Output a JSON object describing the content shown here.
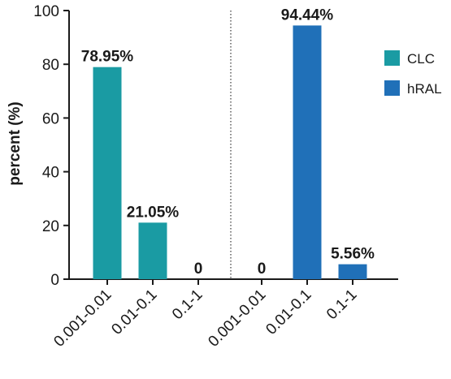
{
  "chart_data": {
    "type": "bar",
    "ylabel": "percent (%)",
    "ylim": [
      0,
      100
    ],
    "yticks": [
      0,
      20,
      40,
      60,
      80,
      100
    ],
    "groups": [
      {
        "series": "CLC",
        "color": "#1a9ba3",
        "categories": [
          "0.001-0.01",
          "0.01-0.1",
          "0.1-1"
        ],
        "values": [
          78.95,
          21.05,
          0
        ],
        "labels": [
          "78.95%",
          "21.05%",
          "0"
        ]
      },
      {
        "series": "hRAL",
        "color": "#2070b8",
        "categories": [
          "0.001-0.01",
          "0.01-0.1",
          "0.1-1"
        ],
        "values": [
          0,
          94.44,
          5.56
        ],
        "labels": [
          "0",
          "94.44%",
          "5.56%"
        ]
      }
    ],
    "legend": {
      "position": "right",
      "entries": [
        {
          "name": "CLC",
          "color": "#1a9ba3"
        },
        {
          "name": "hRAL",
          "color": "#2070b8"
        }
      ]
    }
  }
}
